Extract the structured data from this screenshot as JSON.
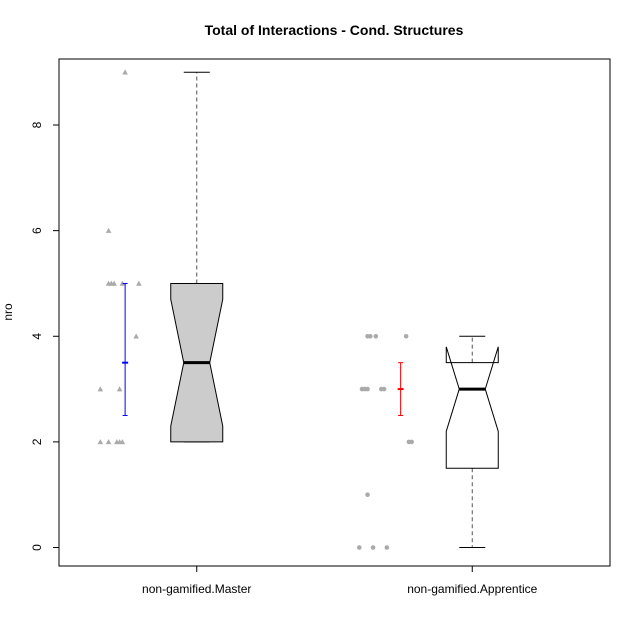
{
  "chart_data": {
    "type": "boxplot",
    "title": "Total of Interactions - Cond. Structures",
    "xlabel": "",
    "ylabel": "nro",
    "ylim": [
      -0.35,
      9.25
    ],
    "yticks": [
      0,
      2,
      4,
      6,
      8
    ],
    "categories": [
      "non-gamified.Master",
      "non-gamified.Apprentice"
    ],
    "grid": false,
    "boxes": [
      {
        "name": "non-gamified.Master",
        "min": 2,
        "q1": 2,
        "median": 3.5,
        "q3": 5,
        "max": 9,
        "notch_low": 2.3,
        "notch_high": 4.7,
        "fill": "#cccccc",
        "mean": 3.5,
        "ci_low": 2.5,
        "ci_high": 5.0,
        "ci_color": "#0000ff",
        "point_shape": "triangle",
        "points": [
          {
            "dx": -0.26,
            "y": 9
          },
          {
            "dx": -0.32,
            "y": 6
          },
          {
            "dx": -0.32,
            "y": 5
          },
          {
            "dx": -0.31,
            "y": 5
          },
          {
            "dx": -0.3,
            "y": 5
          },
          {
            "dx": -0.27,
            "y": 5
          },
          {
            "dx": -0.21,
            "y": 5
          },
          {
            "dx": -0.22,
            "y": 4
          },
          {
            "dx": -0.35,
            "y": 3
          },
          {
            "dx": -0.28,
            "y": 3
          },
          {
            "dx": -0.35,
            "y": 2
          },
          {
            "dx": -0.32,
            "y": 2
          },
          {
            "dx": -0.29,
            "y": 2
          },
          {
            "dx": -0.28,
            "y": 2
          },
          {
            "dx": -0.27,
            "y": 2
          }
        ]
      },
      {
        "name": "non-gamified.Apprentice",
        "min": 0,
        "q1": 1.5,
        "median": 3,
        "q3": 3.5,
        "max": 4,
        "notch_low": 2.2,
        "notch_high": 3.8,
        "fill": "#ffffff",
        "mean": 3.0,
        "ci_low": 2.5,
        "ci_high": 3.5,
        "ci_color": "#ff0000",
        "point_shape": "circle",
        "points": [
          {
            "dx": -0.38,
            "y": 4
          },
          {
            "dx": -0.37,
            "y": 4
          },
          {
            "dx": -0.35,
            "y": 4
          },
          {
            "dx": -0.24,
            "y": 4
          },
          {
            "dx": -0.4,
            "y": 3
          },
          {
            "dx": -0.39,
            "y": 3
          },
          {
            "dx": -0.38,
            "y": 3
          },
          {
            "dx": -0.33,
            "y": 3
          },
          {
            "dx": -0.32,
            "y": 3
          },
          {
            "dx": -0.23,
            "y": 2
          },
          {
            "dx": -0.22,
            "y": 2
          },
          {
            "dx": -0.38,
            "y": 1
          },
          {
            "dx": -0.41,
            "y": 0
          },
          {
            "dx": -0.36,
            "y": 0
          },
          {
            "dx": -0.31,
            "y": 0
          }
        ]
      }
    ]
  }
}
